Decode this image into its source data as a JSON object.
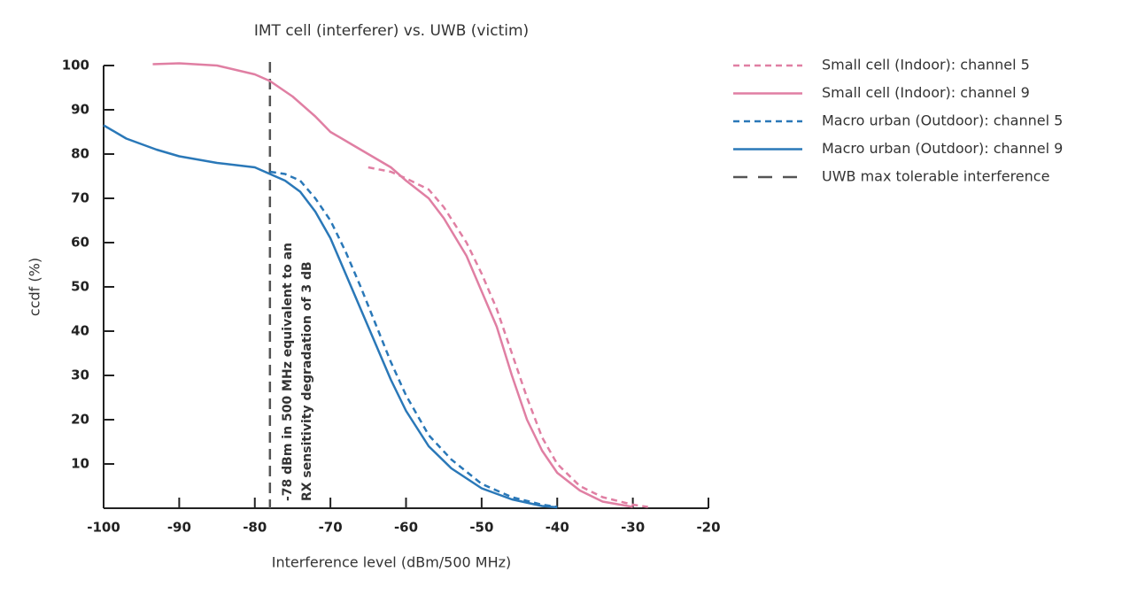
{
  "chart_data": {
    "type": "line",
    "title": "IMT cell (interferer) vs. UWB (victim)",
    "xlabel": "Interference level (dBm/500 MHz)",
    "ylabel": "ccdf (%)",
    "xlim": [
      -100,
      -20
    ],
    "xticks": [
      -100,
      -90,
      -80,
      -70,
      -60,
      -50,
      -40,
      -30,
      -20
    ],
    "ylim": [
      0,
      100
    ],
    "yticks": [
      10,
      20,
      30,
      40,
      50,
      60,
      70,
      80,
      90,
      100
    ],
    "legend": "right",
    "series": [
      {
        "name": "Small cell (Indoor): channel 5",
        "color": "#e07fa3",
        "style": "dashed",
        "x": [
          -65,
          -62,
          -60,
          -57,
          -55,
          -52,
          -50,
          -48,
          -46,
          -44,
          -42,
          -40,
          -37,
          -34,
          -30,
          -28
        ],
        "values": [
          77,
          76,
          74.5,
          72,
          68,
          60,
          53,
          45,
          35,
          25,
          16,
          10,
          5,
          2.5,
          0.8,
          0.3
        ]
      },
      {
        "name": "Small cell (Indoor): channel 9",
        "color": "#e07fa3",
        "style": "solid",
        "x": [
          -93.5,
          -90,
          -85,
          -80,
          -78,
          -75,
          -72,
          -70,
          -67,
          -65,
          -62,
          -60,
          -57,
          -55,
          -52,
          -50,
          -48,
          -46,
          -44,
          -42,
          -40,
          -37,
          -34,
          -30
        ],
        "values": [
          100.3,
          100.5,
          100,
          98,
          96.5,
          93,
          88.5,
          85,
          82,
          80,
          77,
          74,
          70,
          65.5,
          57,
          49,
          41,
          30,
          20,
          13,
          8,
          4,
          1.5,
          0.3
        ]
      },
      {
        "name": "Macro urban (Outdoor): channel 5",
        "color": "#2a78b8",
        "style": "dashed",
        "x": [
          -78,
          -76,
          -74,
          -72,
          -70,
          -68,
          -66,
          -64,
          -62,
          -60,
          -57,
          -54,
          -50,
          -46,
          -42,
          -40
        ],
        "values": [
          76,
          75.5,
          74,
          70,
          65,
          58,
          50,
          41.5,
          33,
          25.5,
          16.5,
          11,
          5.5,
          2.5,
          0.8,
          0.3
        ]
      },
      {
        "name": "Macro urban (Outdoor): channel 9",
        "color": "#2a78b8",
        "style": "solid",
        "x": [
          -100,
          -97,
          -93,
          -90,
          -85,
          -80,
          -78,
          -76,
          -74,
          -72,
          -70,
          -68,
          -66,
          -64,
          -62,
          -60,
          -57,
          -54,
          -50,
          -46,
          -42,
          -40
        ],
        "values": [
          86.5,
          83.5,
          81,
          79.5,
          78,
          77,
          75.5,
          74,
          71.5,
          67,
          61,
          53,
          45,
          37,
          29,
          22,
          14,
          9,
          4.5,
          2,
          0.5,
          0.2
        ]
      }
    ],
    "vline": {
      "name": "UWB max tolerable interference",
      "x": -78,
      "color": "#555555"
    },
    "annotation": [
      "-78 dBm in 500 MHz equivalent to an",
      "RX sensitivity degradation of 3 dB"
    ]
  }
}
